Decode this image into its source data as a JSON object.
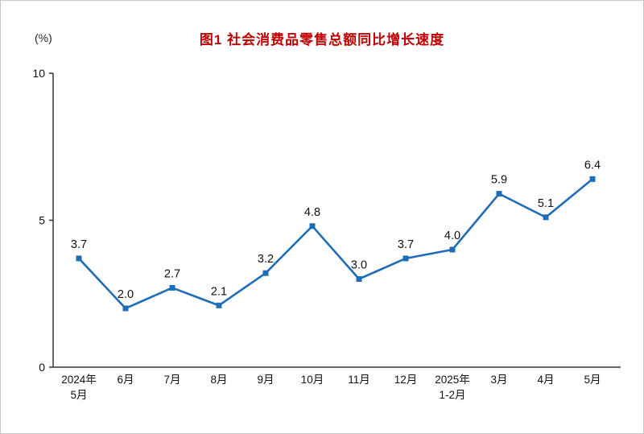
{
  "figure": {
    "title": "图1 社会消费品零售总额同比增长速度",
    "unit_label": "(%)"
  },
  "chart_data": {
    "type": "line",
    "title": "图1 社会消费品零售总额同比增长速度",
    "ylabel": "(%)",
    "xlabel": "",
    "categories": [
      "2024年|5月",
      "6月",
      "7月",
      "8月",
      "9月",
      "10月",
      "11月",
      "12月",
      "2025年|1-2月",
      "3月",
      "4月",
      "5月"
    ],
    "values": [
      3.7,
      2.0,
      2.7,
      2.1,
      3.2,
      4.8,
      3.0,
      3.7,
      4.0,
      5.9,
      5.1,
      6.4
    ],
    "ylim": [
      0,
      10
    ],
    "yticks": [
      0,
      5,
      10
    ],
    "grid": false,
    "legend_position": "none",
    "colors": {
      "line": "#1f6db8",
      "marker": "#1f6db8",
      "title": "#c00000",
      "axis": "#333333",
      "label_text": "#111111"
    }
  }
}
